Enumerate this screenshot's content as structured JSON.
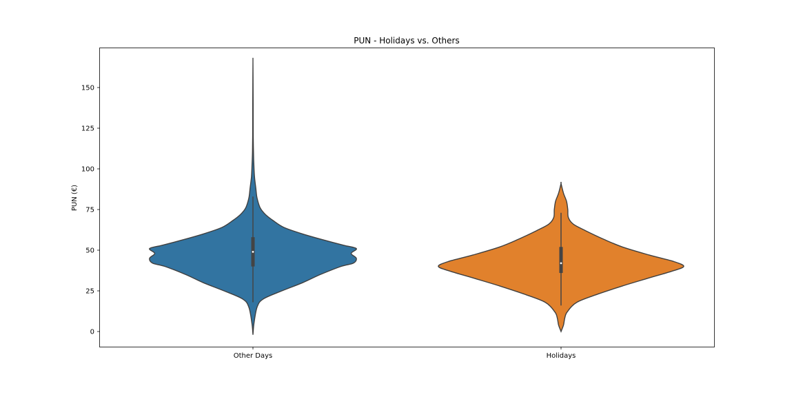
{
  "chart_data": {
    "type": "violin",
    "title": "PUN - Holidays vs. Others",
    "xlabel": "",
    "ylabel": "PUN (€)",
    "ylim": [
      -10,
      165
    ],
    "yticks": [
      0,
      25,
      50,
      75,
      100,
      125,
      150
    ],
    "categories": [
      "Other Days",
      "Holidays"
    ],
    "colors": {
      "Other Days": "#3274a1",
      "Holidays": "#e1812c",
      "outline": "#3f3f3f",
      "box": "#444444"
    },
    "series": [
      {
        "name": "Other Days",
        "min": -2,
        "q1": 40,
        "median": 49,
        "q3": 58,
        "whisker_low": 18,
        "whisker_high": 83,
        "max": 166,
        "density": [
          {
            "y": -2,
            "w": 0.0
          },
          {
            "y": 5,
            "w": 0.01
          },
          {
            "y": 15,
            "w": 0.04
          },
          {
            "y": 20,
            "w": 0.1
          },
          {
            "y": 25,
            "w": 0.28
          },
          {
            "y": 30,
            "w": 0.48
          },
          {
            "y": 35,
            "w": 0.65
          },
          {
            "y": 40,
            "w": 0.85
          },
          {
            "y": 42,
            "w": 0.97
          },
          {
            "y": 45,
            "w": 1.0
          },
          {
            "y": 48,
            "w": 0.95
          },
          {
            "y": 51,
            "w": 1.0
          },
          {
            "y": 53,
            "w": 0.88
          },
          {
            "y": 56,
            "w": 0.7
          },
          {
            "y": 60,
            "w": 0.48
          },
          {
            "y": 64,
            "w": 0.3
          },
          {
            "y": 68,
            "w": 0.2
          },
          {
            "y": 72,
            "w": 0.12
          },
          {
            "y": 76,
            "w": 0.07
          },
          {
            "y": 82,
            "w": 0.04
          },
          {
            "y": 88,
            "w": 0.028
          },
          {
            "y": 95,
            "w": 0.015
          },
          {
            "y": 102,
            "w": 0.009
          },
          {
            "y": 110,
            "w": 0.005
          },
          {
            "y": 120,
            "w": 0.003
          },
          {
            "y": 135,
            "w": 0.002
          },
          {
            "y": 150,
            "w": 0.0015
          },
          {
            "y": 166,
            "w": 0.0
          }
        ]
      },
      {
        "name": "Holidays",
        "min": 0,
        "q1": 36,
        "median": 42,
        "q3": 52,
        "whisker_low": 16,
        "whisker_high": 73,
        "max": 91,
        "density": [
          {
            "y": 0,
            "w": 0.0
          },
          {
            "y": 4,
            "w": 0.02
          },
          {
            "y": 8,
            "w": 0.03
          },
          {
            "y": 12,
            "w": 0.05
          },
          {
            "y": 18,
            "w": 0.13
          },
          {
            "y": 23,
            "w": 0.3
          },
          {
            "y": 28,
            "w": 0.5
          },
          {
            "y": 33,
            "w": 0.72
          },
          {
            "y": 37,
            "w": 0.9
          },
          {
            "y": 40,
            "w": 1.0
          },
          {
            "y": 43,
            "w": 0.92
          },
          {
            "y": 47,
            "w": 0.72
          },
          {
            "y": 52,
            "w": 0.5
          },
          {
            "y": 57,
            "w": 0.34
          },
          {
            "y": 62,
            "w": 0.2
          },
          {
            "y": 66,
            "w": 0.1
          },
          {
            "y": 70,
            "w": 0.06
          },
          {
            "y": 75,
            "w": 0.055
          },
          {
            "y": 80,
            "w": 0.045
          },
          {
            "y": 85,
            "w": 0.02
          },
          {
            "y": 91,
            "w": 0.0
          }
        ]
      }
    ]
  }
}
